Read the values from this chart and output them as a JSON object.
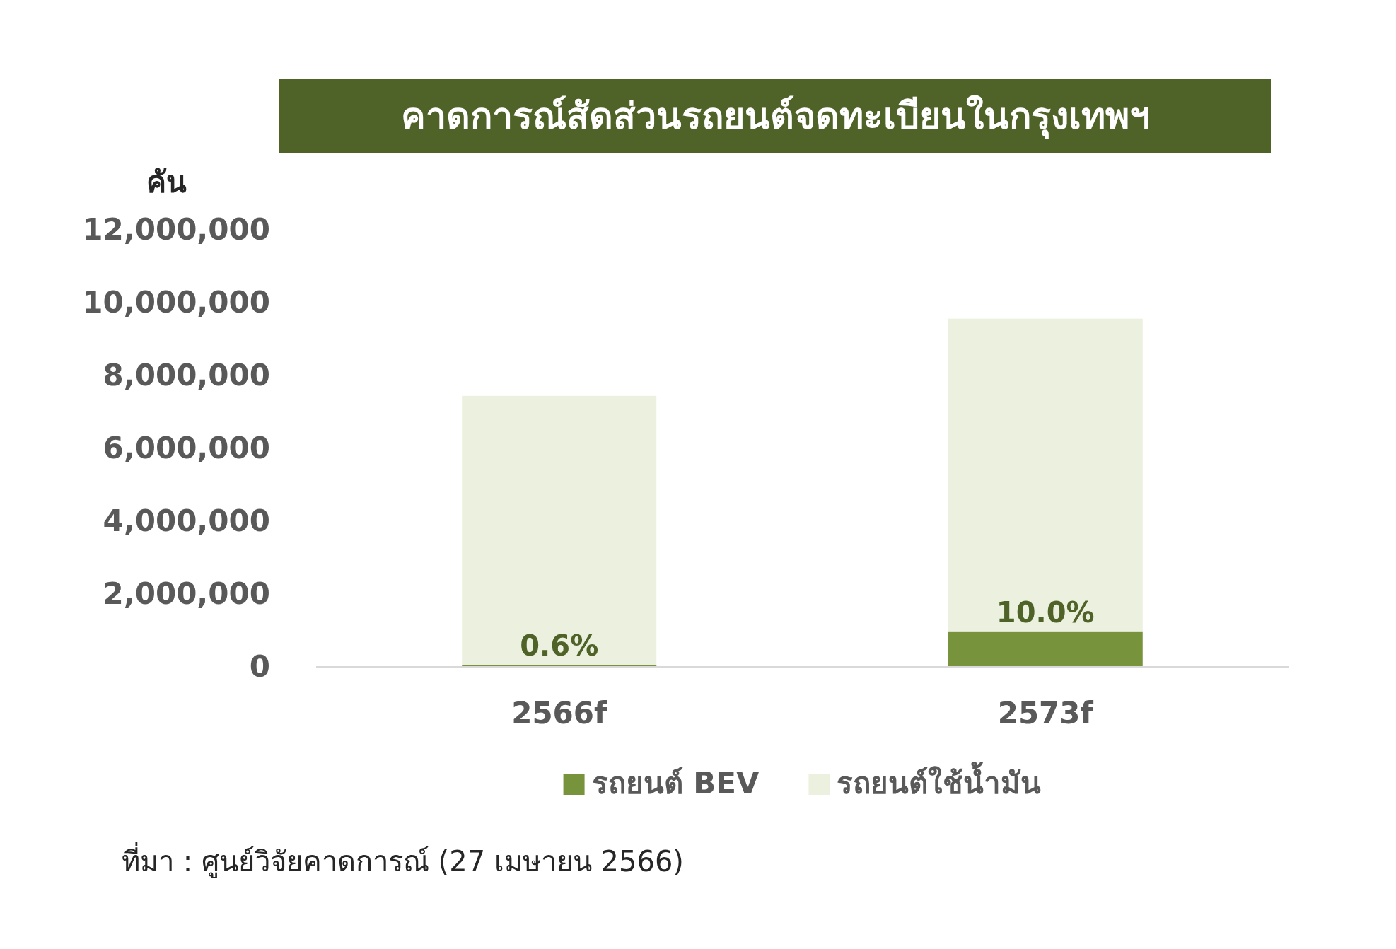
{
  "chart_data": {
    "type": "bar",
    "stacked": true,
    "title": "คาดการณ์สัดส่วนรถยนต์จดทะเบียนในกรุงเทพฯ",
    "ylabel": "คัน",
    "categories": [
      "2566f",
      "2573f"
    ],
    "series": [
      {
        "name": "รถยนต์ BEV",
        "color": "#77933c",
        "values": [
          40000,
          960000
        ]
      },
      {
        "name": "รถยนต์ใช้น้ำมัน",
        "color": "#ebf1de",
        "values": [
          7400000,
          8600000
        ]
      }
    ],
    "ylim": [
      0,
      12000000
    ],
    "yticks": [
      {
        "value": 0,
        "label": "0"
      },
      {
        "value": 2000000,
        "label": "2,000,000"
      },
      {
        "value": 4000000,
        "label": "4,000,000"
      },
      {
        "value": 6000000,
        "label": "6,000,000"
      },
      {
        "value": 8000000,
        "label": "8,000,000"
      },
      {
        "value": 10000000,
        "label": "10,000,000"
      },
      {
        "value": 12000000,
        "label": "12,000,000"
      }
    ],
    "legend": "bottom",
    "annotations": [
      {
        "text": "0.6%",
        "x": "2566f",
        "y": 40000
      },
      {
        "text": "10.0%",
        "x": "2573f",
        "y": 960000
      },
      "ที่มา : ศูนย์วิจัยคาดการณ์ (27 เมษายน 2566)"
    ]
  }
}
